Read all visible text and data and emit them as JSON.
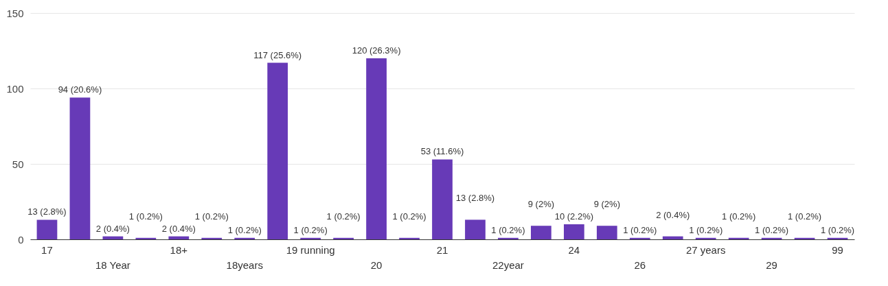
{
  "chart_data": {
    "type": "bar",
    "categories": [
      "17",
      null,
      "18 Year",
      null,
      "18+",
      null,
      "18years",
      null,
      "19 running",
      null,
      "20",
      null,
      "21",
      null,
      "22year",
      null,
      "24",
      null,
      "26",
      null,
      "27 years",
      null,
      "29",
      null,
      "99"
    ],
    "values": [
      13,
      94,
      2,
      1,
      2,
      1,
      1,
      117,
      1,
      1,
      120,
      1,
      53,
      13,
      1,
      9,
      10,
      9,
      1,
      2,
      1,
      1,
      1,
      1,
      1
    ],
    "value_labels": [
      "13 (2.8%)",
      "94 (20.6%)",
      "2 (0.4%)",
      "1 (0.2%)",
      "2 (0.4%)",
      "1 (0.2%)",
      "1 (0.2%)",
      "117 (25.6%)",
      "1 (0.2%)",
      "1 (0.2%)",
      "120 (26.3%)",
      "1 (0.2%)",
      "53 (11.6%)",
      "13 (2.8%)",
      "1 (0.2%)",
      "9 (2%)",
      "10 (2.2%)",
      "9 (2%)",
      "1 (0.2%)",
      "2 (0.4%)",
      "1 (0.2%)",
      "1 (0.2%)",
      "1 (0.2%)",
      "1 (0.2%)",
      "1 (0.2%)"
    ],
    "color": "#673ab7",
    "ylim": [
      0,
      150
    ],
    "yticks": [
      0,
      50,
      100,
      150
    ],
    "grid": "y"
  }
}
